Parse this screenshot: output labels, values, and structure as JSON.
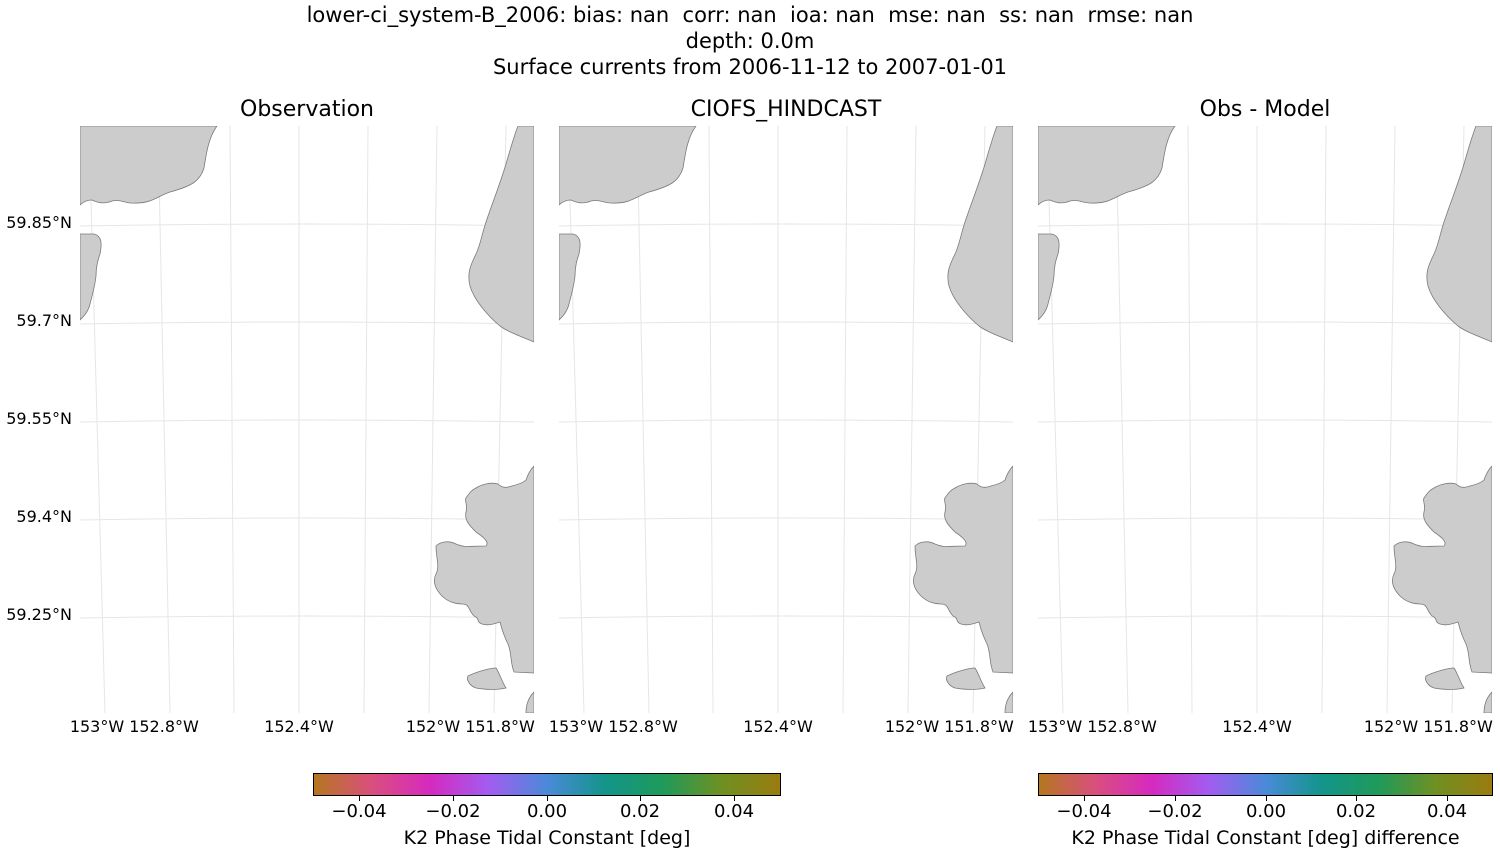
{
  "figure": {
    "title_lines": [
      "lower-ci_system-B_2006: bias: nan  corr: nan  ioa: nan  mse: nan  ss: nan  rmse: nan",
      "depth: 0.0m",
      "Surface currents from 2006-11-12 to 2007-01-01"
    ]
  },
  "panels": [
    {
      "title": "Observation"
    },
    {
      "title": "CIOFS_HINDCAST"
    },
    {
      "title": "Obs - Model"
    }
  ],
  "axes": {
    "lat_labels": [
      "59.85°N",
      "59.7°N",
      "59.55°N",
      "59.4°N",
      "59.25°N"
    ],
    "lon_labels": [
      "153°W",
      "152.8°W",
      "152.4°W",
      "152°W",
      "151.8°W"
    ]
  },
  "colorbars": [
    {
      "ticks": [
        "−0.04",
        "−0.02",
        "0.00",
        "0.02",
        "0.04"
      ],
      "label": "K2 Phase Tidal Constant [deg]",
      "range": [
        -0.05,
        0.05
      ]
    },
    {
      "ticks": [
        "−0.04",
        "−0.02",
        "0.00",
        "0.02",
        "0.04"
      ],
      "label": "K2 Phase Tidal Constant [deg] difference",
      "range": [
        -0.05,
        0.05
      ]
    }
  ],
  "colors": {
    "land": "#cccccc",
    "coast": "#7a7a7a",
    "grid": "#e6e6e6",
    "colormap": [
      "#b5761f",
      "#d94f7e",
      "#d52ac0",
      "#a35cf0",
      "#4a8ad9",
      "#13958a",
      "#1f9a5a",
      "#6f9022",
      "#9a7b10"
    ]
  }
}
